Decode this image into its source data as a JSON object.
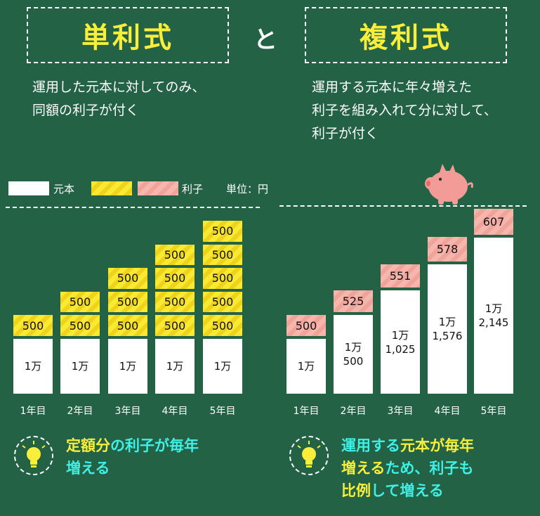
{
  "header": {
    "left_title": "単利式",
    "connector": "と",
    "right_title": "複利式",
    "left_desc": "運用した元本に対してのみ、\n同額の利子が付く",
    "right_desc": "運用する元本に年々増えた\n利子を組み入れて分に対して、\n利子が付く"
  },
  "legend": {
    "principal": "元本",
    "interest": "利子",
    "unit": "単位：円"
  },
  "colors": {
    "background": "#236245",
    "title_yellow": "#f9ee3a",
    "cyan": "#3ef0e6",
    "interest_yellow": "#f8ea33",
    "interest_pink": "#f6b6ae"
  },
  "chart_data": [
    {
      "type": "bar",
      "name": "simple",
      "categories": [
        "1年目",
        "2年目",
        "3年目",
        "4年目",
        "5年目"
      ],
      "principal_label": "1万",
      "principal": [
        10000,
        10000,
        10000,
        10000,
        10000
      ],
      "interest_segment_label": "500",
      "interest_segments": [
        1,
        2,
        3,
        4,
        5
      ],
      "interest_total": [
        500,
        1000,
        1500,
        2000,
        2500
      ]
    },
    {
      "type": "bar",
      "name": "compound",
      "categories": [
        "1年目",
        "2年目",
        "3年目",
        "4年目",
        "5年目"
      ],
      "principal_labels": [
        "1万",
        "1万\n500",
        "1万\n1,025",
        "1万\n1,576",
        "1万\n2,145"
      ],
      "principal": [
        10000,
        10500,
        11025,
        11576,
        12145
      ],
      "interest_labels": [
        "500",
        "525",
        "551",
        "578",
        "607"
      ],
      "interest": [
        500,
        525,
        551,
        578,
        607
      ]
    }
  ],
  "footer": {
    "left": [
      {
        "text": "定額分",
        "color": "yellow"
      },
      {
        "text": "の利子が毎年\n増える",
        "color": "cyan"
      }
    ],
    "right": [
      {
        "text": "運用する",
        "color": "cyan"
      },
      {
        "text": "元本が毎年\n増える",
        "color": "yellow"
      },
      {
        "text": "ため、利子も\n",
        "color": "cyan"
      },
      {
        "text": "比例",
        "color": "yellow"
      },
      {
        "text": "して増える",
        "color": "cyan"
      }
    ]
  },
  "icons": {
    "piggy": "piggy-bank-icon",
    "bulb": "lightbulb-icon"
  }
}
